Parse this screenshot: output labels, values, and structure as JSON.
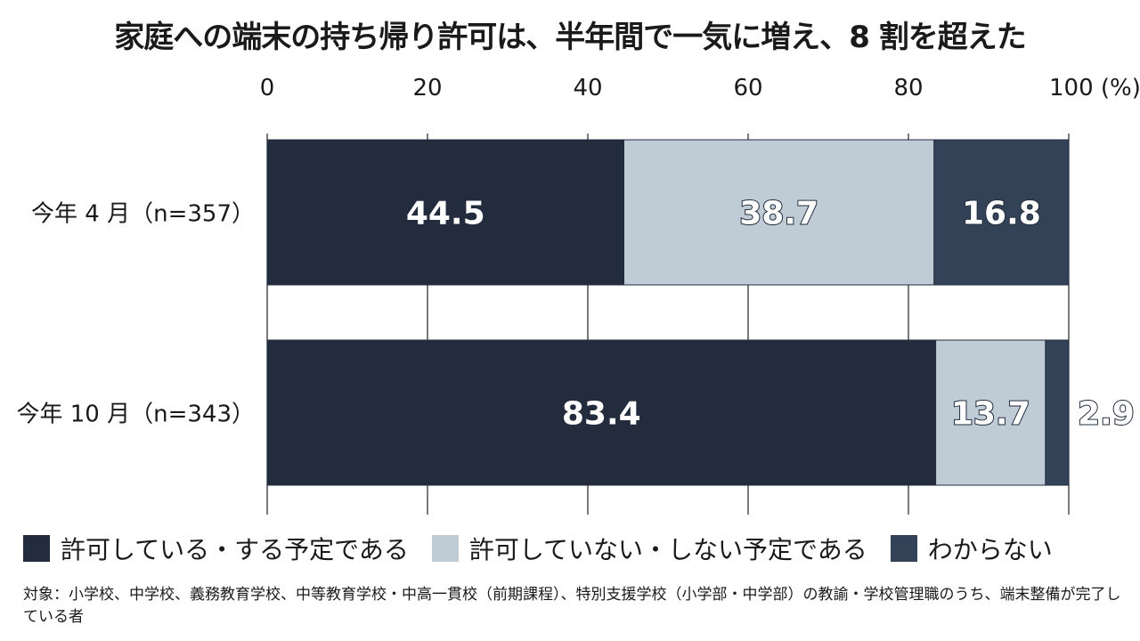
{
  "title": "家庭への端末の持ち帰り許可は、半年間で一気に増え、8 割を超えた",
  "chart_data": {
    "type": "bar",
    "stacked": true,
    "orientation": "horizontal",
    "x_ticks": [
      "0",
      "20",
      "40",
      "60",
      "80",
      "100 (%)"
    ],
    "xlim": [
      0,
      100
    ],
    "categories": [
      "今年 4 月（n=357）",
      "今年 10 月（n=343）"
    ],
    "series": [
      {
        "name": "許可している・する予定である",
        "values": [
          44.5,
          83.4
        ],
        "labels": [
          "44.5",
          "83.4"
        ],
        "color": "#222c3d"
      },
      {
        "name": "許可していない・しない予定である",
        "values": [
          38.7,
          13.7
        ],
        "labels": [
          "38.7",
          "13.7"
        ],
        "color": "#bfccd6"
      },
      {
        "name": "わからない",
        "values": [
          16.8,
          2.9
        ],
        "labels": [
          "16.8",
          "2.9"
        ],
        "color": "#344258"
      }
    ],
    "grid": true,
    "legend": "bottom"
  },
  "note": "対象：小学校、中学校、義務教育学校、中等教育学校・中高一貫校（前期課程）、特別支援学校（小学部・中学部）の教諭・学校管理職のうち、端末整備が完了している者"
}
